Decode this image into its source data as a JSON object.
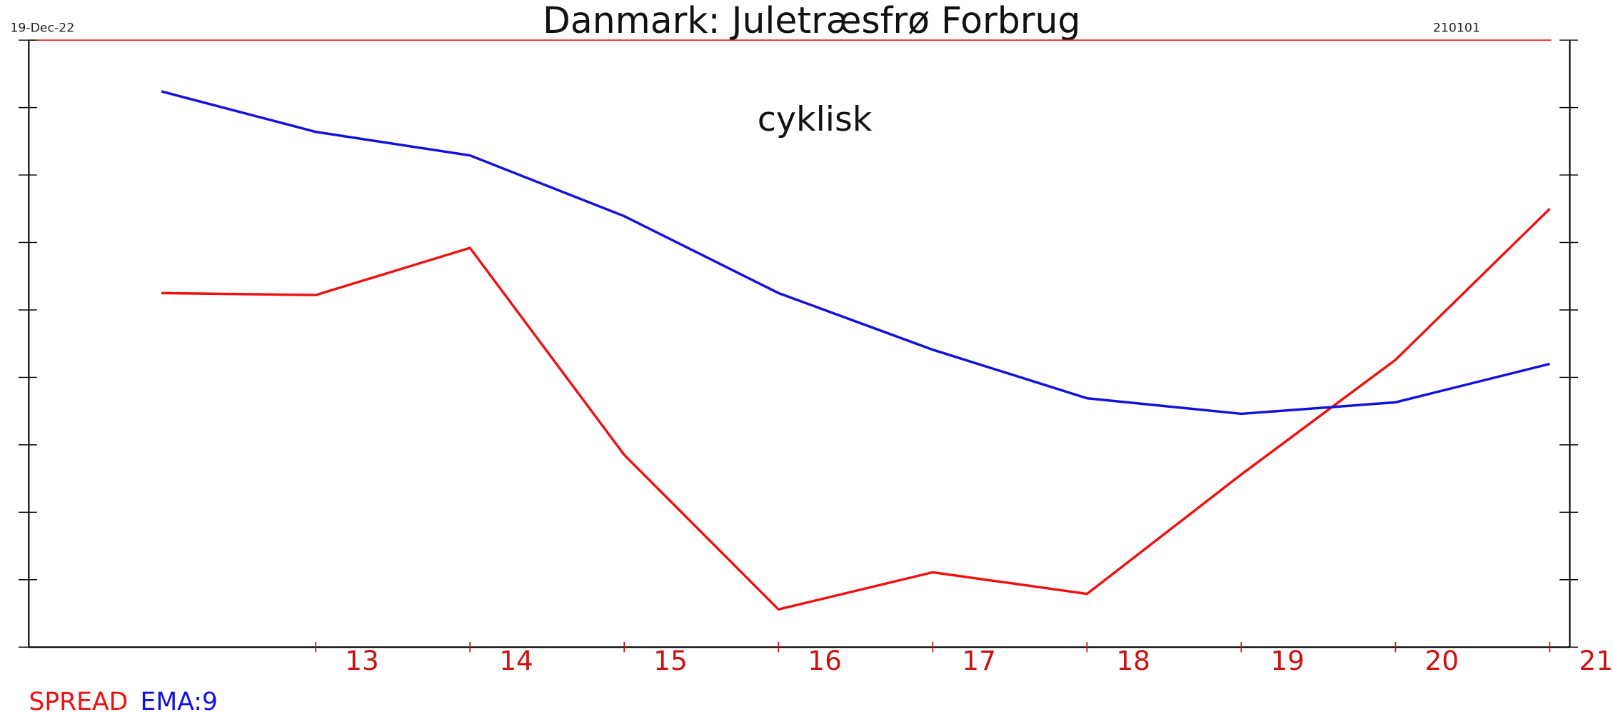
{
  "chart_data": {
    "type": "line",
    "title": "Danmark: Juletræsfrø Forbrug",
    "date_left": "19-Dec-22",
    "date_right": "210101",
    "annotation": "cyklisk",
    "x": [
      12,
      13,
      14,
      15,
      16,
      17,
      18,
      19,
      20,
      21
    ],
    "xlim": [
      11.14,
      21.13
    ],
    "xticks": [
      13,
      14,
      15,
      16,
      17,
      18,
      19,
      20,
      21
    ],
    "ylim": [
      0,
      9
    ],
    "yticks": [
      0,
      1,
      2,
      3,
      4,
      5,
      6,
      7,
      8,
      9
    ],
    "series": [
      {
        "name": "SPREAD",
        "color": "#ee1111",
        "values": [
          5.25,
          5.22,
          5.92,
          2.85,
          0.56,
          1.11,
          0.79,
          2.56,
          4.26,
          6.5
        ]
      },
      {
        "name": "EMA:9",
        "color": "#1111dd",
        "values": [
          8.24,
          7.64,
          7.29,
          6.39,
          5.25,
          4.41,
          3.69,
          3.46,
          3.63,
          4.2
        ]
      }
    ]
  }
}
